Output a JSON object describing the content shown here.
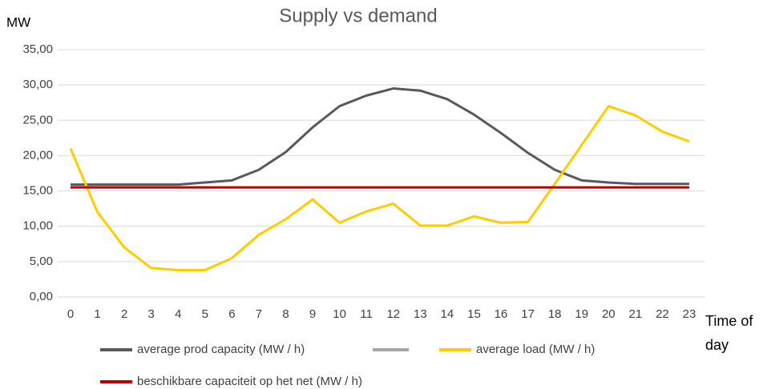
{
  "chart_data": {
    "type": "line",
    "title": "Supply vs demand",
    "y_label": "MW",
    "x_label": "Time of day",
    "categories": [
      "0",
      "1",
      "2",
      "3",
      "4",
      "5",
      "6",
      "7",
      "8",
      "9",
      "10",
      "11",
      "12",
      "13",
      "14",
      "15",
      "16",
      "17",
      "18",
      "19",
      "20",
      "21",
      "22",
      "23"
    ],
    "series": [
      {
        "name": "average prod capacity (MW / h)",
        "color": "#595959",
        "values": [
          15.9,
          15.9,
          15.9,
          15.9,
          15.9,
          16.2,
          16.5,
          18,
          20.5,
          24,
          27,
          28.5,
          29.5,
          29.2,
          28,
          25.8,
          23.2,
          20.4,
          18,
          16.5,
          16.2,
          16,
          16,
          16
        ]
      },
      {
        "name": "average load (MW / h)",
        "color": "#ffcc00",
        "values": [
          21,
          12,
          7,
          4.1,
          3.8,
          3.8,
          5.5,
          8.8,
          11,
          13.8,
          10.5,
          12.1,
          13.2,
          10.1,
          10.1,
          11.4,
          10.5,
          10.6,
          16,
          21.5,
          27,
          25.7,
          23.4,
          22
        ]
      },
      {
        "name": "beschikbare capaciteit op het net (MW / h)",
        "color": "#c00000",
        "values": [
          15.5,
          15.5,
          15.5,
          15.5,
          15.5,
          15.5,
          15.5,
          15.5,
          15.5,
          15.5,
          15.5,
          15.5,
          15.5,
          15.5,
          15.5,
          15.5,
          15.5,
          15.5,
          15.5,
          15.5,
          15.5,
          15.5,
          15.5,
          15.5
        ]
      }
    ],
    "ylim": [
      0,
      35
    ],
    "yticks": [
      {
        "value": 0,
        "label": "0,00"
      },
      {
        "value": 5,
        "label": "5,00"
      },
      {
        "value": 10,
        "label": "10,00"
      },
      {
        "value": 15,
        "label": "15,00"
      },
      {
        "value": 20,
        "label": "20,00"
      },
      {
        "value": 25,
        "label": "25,00"
      },
      {
        "value": 30,
        "label": "30,00"
      },
      {
        "value": 35,
        "label": "35,00"
      }
    ],
    "grid": true
  }
}
